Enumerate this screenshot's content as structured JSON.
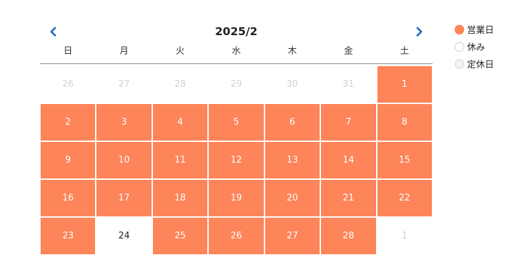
{
  "calendar": {
    "title": "2025/2",
    "prev_icon": "chevron-left-icon",
    "next_icon": "chevron-right-icon",
    "accent_color": "#1565c0",
    "weekdays": [
      "日",
      "月",
      "火",
      "水",
      "木",
      "金",
      "土"
    ],
    "cells": [
      {
        "label": "26",
        "status": "other"
      },
      {
        "label": "27",
        "status": "other"
      },
      {
        "label": "28",
        "status": "other"
      },
      {
        "label": "29",
        "status": "other"
      },
      {
        "label": "30",
        "status": "other"
      },
      {
        "label": "31",
        "status": "other"
      },
      {
        "label": "1",
        "status": "open"
      },
      {
        "label": "2",
        "status": "open"
      },
      {
        "label": "3",
        "status": "open"
      },
      {
        "label": "4",
        "status": "open"
      },
      {
        "label": "5",
        "status": "open"
      },
      {
        "label": "6",
        "status": "open"
      },
      {
        "label": "7",
        "status": "open"
      },
      {
        "label": "8",
        "status": "open"
      },
      {
        "label": "9",
        "status": "open"
      },
      {
        "label": "10",
        "status": "open"
      },
      {
        "label": "11",
        "status": "open"
      },
      {
        "label": "12",
        "status": "open"
      },
      {
        "label": "13",
        "status": "open"
      },
      {
        "label": "14",
        "status": "open"
      },
      {
        "label": "15",
        "status": "open"
      },
      {
        "label": "16",
        "status": "open"
      },
      {
        "label": "17",
        "status": "open"
      },
      {
        "label": "18",
        "status": "open"
      },
      {
        "label": "19",
        "status": "open"
      },
      {
        "label": "20",
        "status": "open"
      },
      {
        "label": "21",
        "status": "open"
      },
      {
        "label": "22",
        "status": "open"
      },
      {
        "label": "23",
        "status": "open"
      },
      {
        "label": "24",
        "status": "closed"
      },
      {
        "label": "25",
        "status": "open"
      },
      {
        "label": "26",
        "status": "open"
      },
      {
        "label": "27",
        "status": "open"
      },
      {
        "label": "28",
        "status": "open"
      },
      {
        "label": "1",
        "status": "other"
      }
    ]
  },
  "legend": {
    "items": [
      {
        "key": "open",
        "label": "営業日",
        "color": "#fe8459",
        "border": "#fe8459"
      },
      {
        "key": "closed",
        "label": "休み",
        "color": "#ffffff",
        "border": "#cfcfcf"
      },
      {
        "key": "regular-holiday",
        "label": "定休日",
        "color": "#f1f1ee",
        "border": "#d8d8d4"
      }
    ]
  }
}
